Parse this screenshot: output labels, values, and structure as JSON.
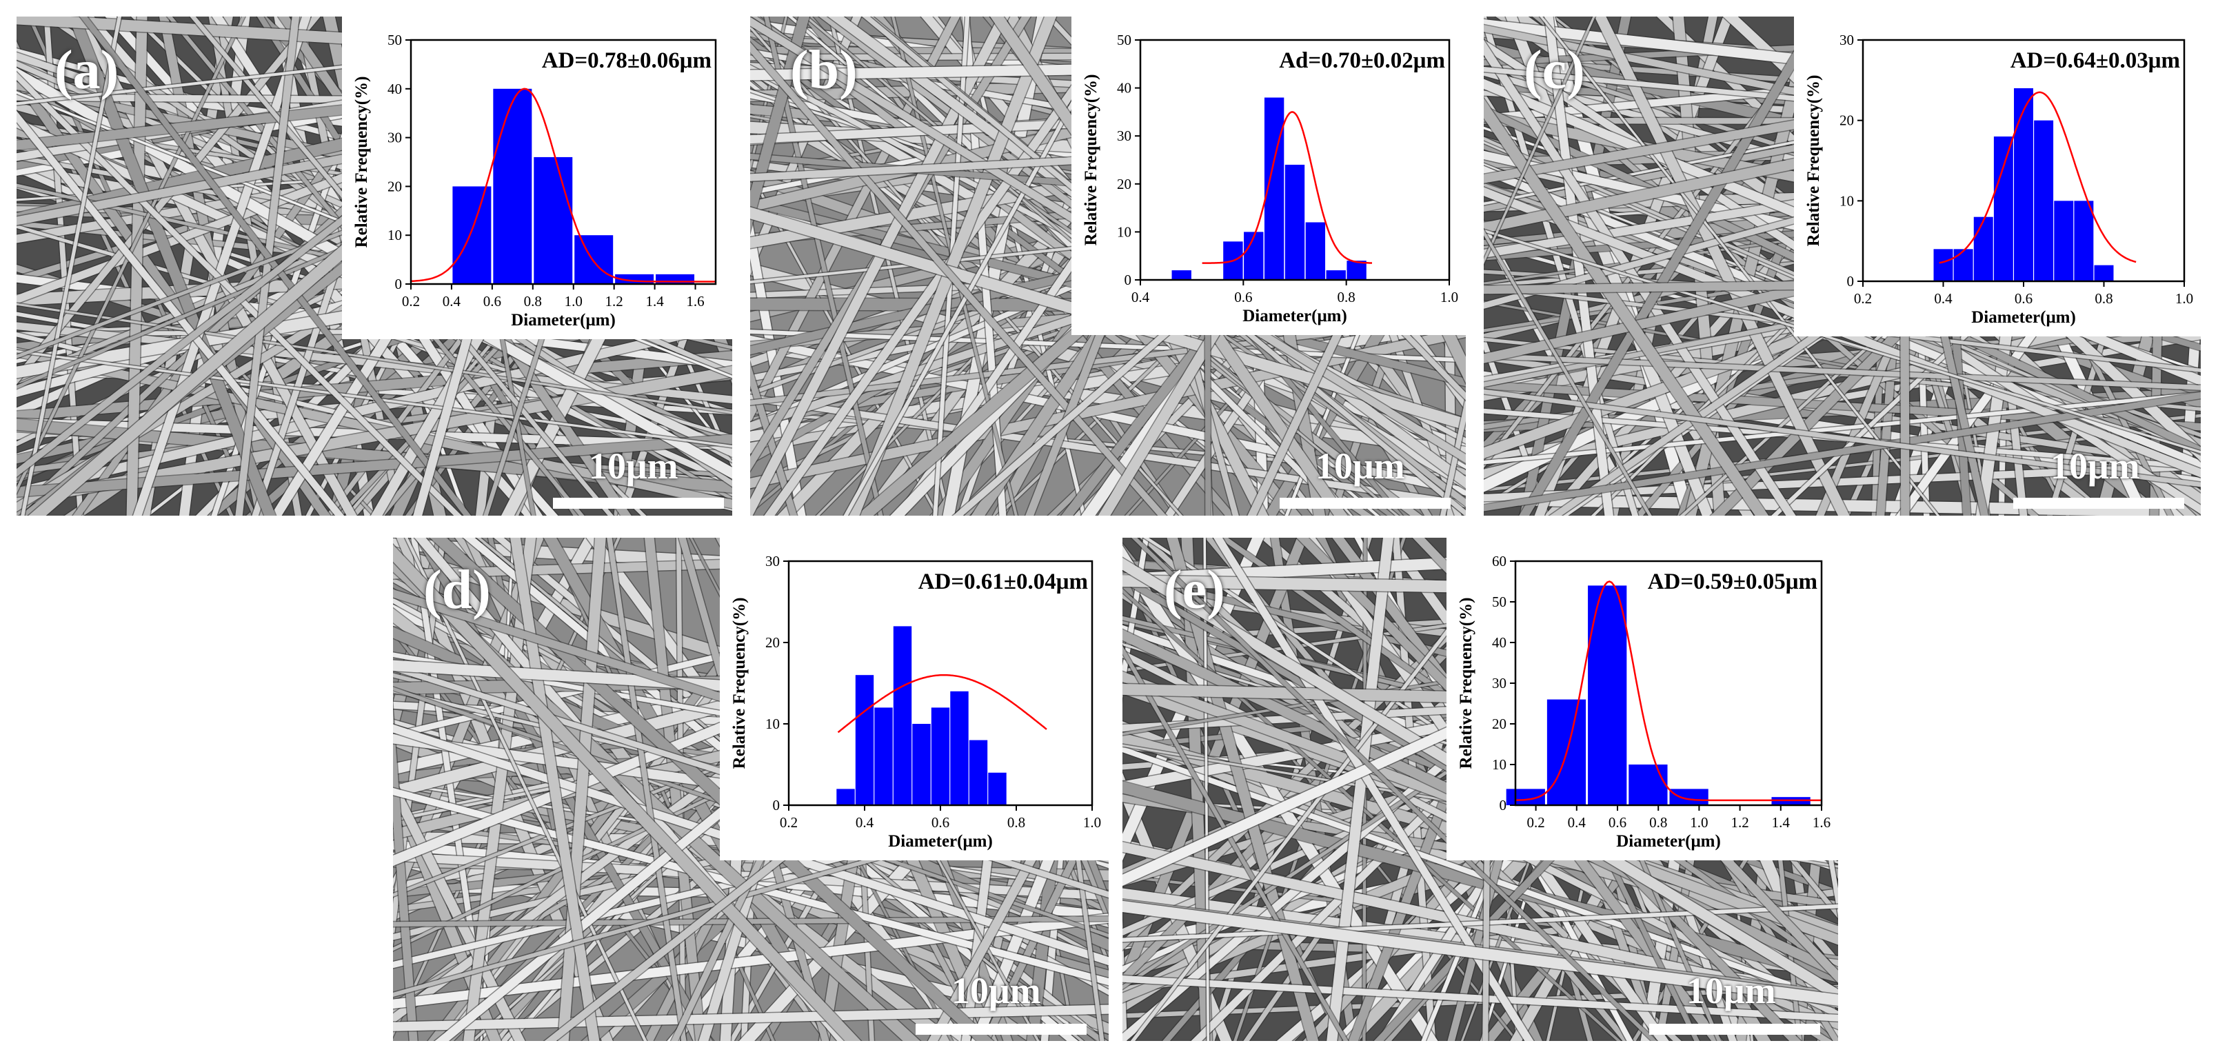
{
  "panels": [
    {
      "label": "(a)",
      "scale_label": "10μm"
    },
    {
      "label": "(b)",
      "scale_label": "10μm"
    },
    {
      "label": "(c)",
      "scale_label": "10μm"
    },
    {
      "label": "(d)",
      "scale_label": "10μm"
    },
    {
      "label": "(e)",
      "scale_label": "10μm"
    }
  ],
  "colors": {
    "bar": "#0000ff",
    "fit": "#ff0000",
    "fiber": "#d8d8d8"
  },
  "chart_data": [
    {
      "type": "bar",
      "annotation": "AD=0.78±0.06μm",
      "xlabel": "Diameter(μm)",
      "ylabel": "Relative Frequency(%)",
      "xlim": [
        0.2,
        1.7
      ],
      "ylim": [
        0,
        50
      ],
      "xticks": [
        "0.2",
        "0.4",
        "0.6",
        "0.8",
        "1.0",
        "1.2",
        "1.4",
        "1.6"
      ],
      "yticks": [
        "0",
        "10",
        "20",
        "30",
        "40",
        "50"
      ],
      "bar_width": 0.19,
      "x": [
        0.5,
        0.7,
        0.9,
        1.1,
        1.3,
        1.5
      ],
      "values": [
        20,
        40,
        26,
        10,
        2,
        2
      ],
      "fit": {
        "mean": 0.76,
        "sigma": 0.16,
        "peak": 40,
        "base": 0.5
      }
    },
    {
      "type": "bar",
      "annotation": "Ad=0.70±0.02μm",
      "xlabel": "Diameter(μm)",
      "ylabel": "Relative Frequency(%)",
      "xlim": [
        0.4,
        1.0
      ],
      "ylim": [
        0,
        50
      ],
      "xticks": [
        "0.4",
        "0.6",
        "0.8",
        "1.0"
      ],
      "yticks": [
        "0",
        "10",
        "20",
        "30",
        "40",
        "50"
      ],
      "bar_width": 0.038,
      "x": [
        0.48,
        0.58,
        0.62,
        0.66,
        0.7,
        0.74,
        0.78,
        0.82,
        0.86
      ],
      "values": [
        2,
        8,
        10,
        38,
        24,
        12,
        2,
        4,
        0
      ],
      "fit": {
        "mean": 0.695,
        "sigma": 0.04,
        "peak": 35,
        "base": 3.5,
        "xrange": [
          0.52,
          0.85
        ]
      }
    },
    {
      "type": "bar",
      "annotation": "AD=0.64±0.03μm",
      "xlabel": "Diameter(μm)",
      "ylabel": "Relative Frequency(%)",
      "xlim": [
        0.2,
        1.0
      ],
      "ylim": [
        0,
        30
      ],
      "xticks": [
        "0.2",
        "0.4",
        "0.6",
        "0.8",
        "1.0"
      ],
      "yticks": [
        "0",
        "10",
        "20",
        "30"
      ],
      "bar_width": 0.048,
      "x": [
        0.4,
        0.45,
        0.5,
        0.55,
        0.6,
        0.65,
        0.7,
        0.75,
        0.8,
        0.85
      ],
      "values": [
        4,
        4,
        8,
        18,
        24,
        20,
        10,
        10,
        2,
        0
      ],
      "fit": {
        "mean": 0.64,
        "sigma": 0.085,
        "peak": 23.5,
        "base": 2,
        "xrange": [
          0.39,
          0.88
        ]
      }
    },
    {
      "type": "bar",
      "annotation": "AD=0.61±0.04μm",
      "xlabel": "Diameter(μm)",
      "ylabel": "Relative Frequency(%)",
      "xlim": [
        0.2,
        1.0
      ],
      "ylim": [
        0,
        30
      ],
      "xticks": [
        "0.2",
        "0.4",
        "0.6",
        "0.8",
        "1.0"
      ],
      "yticks": [
        "0",
        "10",
        "20",
        "30"
      ],
      "bar_width": 0.048,
      "x": [
        0.35,
        0.4,
        0.45,
        0.5,
        0.55,
        0.6,
        0.65,
        0.7,
        0.75,
        0.8,
        0.85,
        0.9
      ],
      "values": [
        2,
        16,
        12,
        22,
        10,
        12,
        14,
        8,
        4,
        0,
        0,
        0
      ],
      "fit": {
        "mean": 0.61,
        "sigma": 0.26,
        "peak": 16,
        "base": 0,
        "xrange": [
          0.33,
          0.88
        ]
      }
    },
    {
      "type": "bar",
      "annotation": "AD=0.59±0.05μm",
      "xlabel": "Diameter(μm)",
      "ylabel": "Relative Frequency(%)",
      "xlim": [
        0.1,
        1.6
      ],
      "ylim": [
        0,
        60
      ],
      "xticks": [
        "0.2",
        "0.4",
        "0.6",
        "0.8",
        "1.0",
        "1.2",
        "1.4",
        "1.6"
      ],
      "yticks": [
        "0",
        "10",
        "20",
        "30",
        "40",
        "50",
        "60"
      ],
      "bar_width": 0.19,
      "x": [
        0.15,
        0.35,
        0.55,
        0.75,
        0.95,
        1.15,
        1.35,
        1.45
      ],
      "values": [
        4,
        26,
        54,
        10,
        4,
        0,
        0,
        2
      ],
      "fit": {
        "mean": 0.56,
        "sigma": 0.12,
        "peak": 55,
        "base": 1.2,
        "xrange": [
          0.1,
          1.6
        ]
      }
    }
  ]
}
